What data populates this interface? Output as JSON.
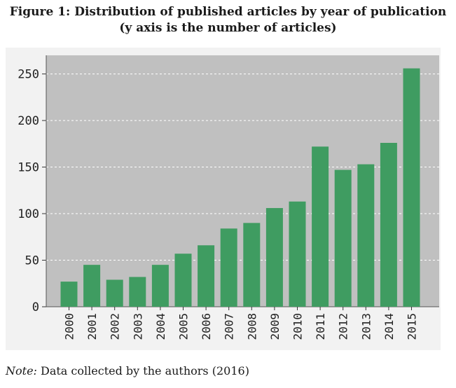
{
  "figure": {
    "title_line1": "Figure 1: Distribution of published articles by year of publication",
    "title_line2": "(y axis is the number of articles)"
  },
  "note": {
    "label": "Note:",
    "text": " Data collected by the authors (2016)"
  },
  "chart_data": {
    "type": "bar",
    "title": "",
    "xlabel": "",
    "ylabel": "",
    "categories": [
      "2000",
      "2001",
      "2002",
      "2003",
      "2004",
      "2005",
      "2006",
      "2007",
      "2008",
      "2009",
      "2010",
      "2011",
      "2012",
      "2013",
      "2014",
      "2015"
    ],
    "values": [
      27,
      45,
      29,
      32,
      45,
      57,
      66,
      84,
      90,
      106,
      113,
      172,
      147,
      153,
      176,
      256
    ],
    "ylim": [
      0,
      270
    ],
    "yticks": [
      0,
      50,
      100,
      150,
      200,
      250
    ],
    "grid": true,
    "legend": "none",
    "colors": {
      "bar": "#3f9c61",
      "plot_background": "#c0c0c0",
      "grid": "#ffffff"
    }
  }
}
